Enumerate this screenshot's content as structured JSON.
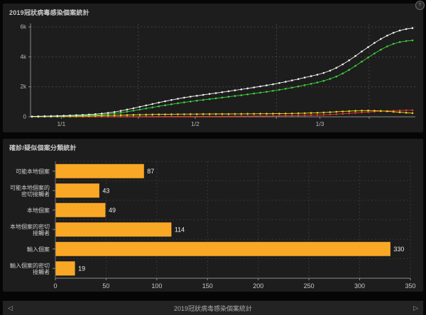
{
  "panels": {
    "line": {
      "title": "2019冠狀病毒感染個案統計"
    },
    "bar": {
      "title": "確診/疑似個案分類統計"
    }
  },
  "icons": {
    "help": "?"
  },
  "footer": {
    "title": "2019冠狀病毒感染個案統計",
    "prev": "◁",
    "next": "▷"
  },
  "colors": {
    "panel_bg": "#1d1d1d",
    "accent_orange": "#f9a825",
    "axis": "#8a8a8a",
    "gridline": "#4a4a4a",
    "tick_label": "#b9b9b9"
  },
  "chart_data": [
    {
      "type": "line",
      "title": "2019冠狀病毒感染個案統計",
      "xlabel": "",
      "ylabel": "",
      "ylim": [
        0,
        6000
      ],
      "grid": "dashed",
      "legend": "none",
      "y_ticks": [
        {
          "label": "0",
          "v": 0
        },
        {
          "label": "2k",
          "v": 2000
        },
        {
          "label": "4k",
          "v": 4000
        },
        {
          "label": "6k",
          "v": 6000
        }
      ],
      "x_ticks": [
        {
          "label": "1/1",
          "f": 0.08
        },
        {
          "label": "1/2",
          "f": 0.428
        },
        {
          "label": "1/3",
          "f": 0.752
        }
      ],
      "x_minor_gridlines": [
        0.28,
        0.639,
        0.88
      ],
      "series": [
        {
          "name": "red",
          "color": "#e23b2e",
          "values": [
            2,
            2,
            3,
            3,
            4,
            5,
            5,
            6,
            7,
            8,
            9,
            10,
            11,
            12,
            13,
            14,
            15,
            16,
            17,
            18,
            19,
            20,
            21,
            22,
            23,
            24,
            25,
            26,
            27,
            28,
            30,
            32,
            34,
            36,
            39,
            42,
            46,
            50,
            55,
            61,
            68,
            76,
            85,
            95,
            107,
            120,
            136,
            155,
            177,
            202,
            230,
            260,
            290,
            318,
            344,
            368,
            390,
            408,
            422,
            433,
            440
          ]
        },
        {
          "name": "yellow",
          "color": "#f2d31b",
          "values": [
            5,
            7,
            10,
            13,
            17,
            22,
            28,
            35,
            43,
            52,
            62,
            73,
            85,
            97,
            109,
            120,
            130,
            139,
            147,
            154,
            160,
            165,
            169,
            173,
            176,
            179,
            181,
            183,
            185,
            187,
            189,
            191,
            193,
            195,
            197,
            199,
            201,
            204,
            207,
            211,
            216,
            222,
            230,
            240,
            253,
            269,
            288,
            310,
            334,
            358,
            380,
            398,
            410,
            415,
            408,
            390,
            364,
            334,
            304,
            274,
            248
          ]
        },
        {
          "name": "green",
          "color": "#3fd23f",
          "values": [
            12,
            17,
            23,
            29,
            36,
            44,
            54,
            66,
            80,
            97,
            117,
            142,
            175,
            220,
            275,
            340,
            410,
            482,
            555,
            628,
            700,
            770,
            838,
            903,
            965,
            1022,
            1075,
            1128,
            1180,
            1232,
            1284,
            1336,
            1388,
            1442,
            1496,
            1552,
            1610,
            1670,
            1733,
            1800,
            1872,
            1948,
            2028,
            2112,
            2200,
            2292,
            2400,
            2530,
            2690,
            2890,
            3130,
            3400,
            3680,
            3960,
            4230,
            4480,
            4700,
            4870,
            4990,
            5060,
            5100
          ]
        },
        {
          "name": "white",
          "color": "#f2f2f2",
          "values": [
            25,
            33,
            42,
            52,
            62,
            75,
            90,
            108,
            128,
            152,
            180,
            215,
            260,
            320,
            395,
            480,
            570,
            665,
            760,
            855,
            950,
            1040,
            1125,
            1205,
            1280,
            1345,
            1405,
            1465,
            1525,
            1585,
            1645,
            1705,
            1765,
            1830,
            1895,
            1960,
            2030,
            2100,
            2175,
            2255,
            2340,
            2430,
            2520,
            2615,
            2710,
            2810,
            2930,
            3080,
            3270,
            3500,
            3770,
            4060,
            4360,
            4650,
            4930,
            5190,
            5420,
            5610,
            5760,
            5860,
            5920
          ]
        }
      ]
    },
    {
      "type": "bar",
      "orientation": "horizontal",
      "title": "確診/疑似個案分類統計",
      "xlabel": "",
      "ylabel": "",
      "xlim": [
        0,
        350
      ],
      "x_ticks": [
        0,
        50,
        100,
        150,
        200,
        250,
        300,
        350
      ],
      "bar_color": "#f9a825",
      "grid": "dotted",
      "legend": "none",
      "categories": [
        "可能本地個案",
        "可能本地個案的密切接觸者",
        "本地個案",
        "本地個案的密切接觸者",
        "輸入個案",
        "輸入個案的密切接觸者"
      ],
      "category_label_lines": [
        [
          "可能本地個案"
        ],
        [
          "可能本地個案的",
          "密切接觸者"
        ],
        [
          "本地個案"
        ],
        [
          "本地個案的密切",
          "接觸者"
        ],
        [
          "輸入個案"
        ],
        [
          "輸入個案的密切",
          "接觸者"
        ]
      ],
      "values": [
        87,
        43,
        49,
        114,
        330,
        19
      ]
    }
  ]
}
